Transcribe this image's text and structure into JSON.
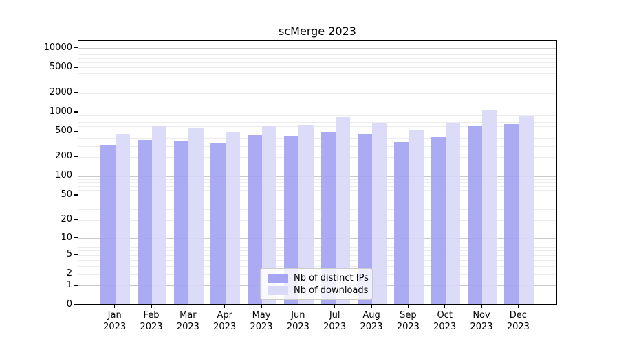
{
  "chart_data": {
    "type": "bar",
    "title": "scMerge 2023",
    "categories": [
      "Jan",
      "Feb",
      "Mar",
      "Apr",
      "May",
      "Jun",
      "Jul",
      "Aug",
      "Sep",
      "Oct",
      "Nov",
      "Dec"
    ],
    "category_year": "2023",
    "series": [
      {
        "name": "Nb of distinct IPs",
        "color": "#a5a5f3",
        "values": [
          300,
          355,
          350,
          315,
          420,
          410,
          485,
          450,
          335,
          405,
          600,
          630
        ]
      },
      {
        "name": "Nb of downloads",
        "color": "#d9d9f8",
        "values": [
          450,
          585,
          540,
          480,
          600,
          610,
          820,
          665,
          510,
          640,
          1030,
          845
        ]
      }
    ],
    "yscale": "log1p",
    "yticks": [
      0,
      1,
      2,
      5,
      10,
      20,
      50,
      100,
      200,
      500,
      1000,
      2000,
      5000,
      10000
    ],
    "ylim": [
      0,
      12700
    ],
    "xlabel": "",
    "ylabel": "",
    "grid": "horizontal major+minor",
    "legend_position": "lower center",
    "colors": {
      "background": "#ffffff",
      "axis": "#000000",
      "grid_major": "#c9c9c9",
      "grid_minor": "#ebebeb",
      "legend_border": "#cccccc",
      "text": "#000000"
    }
  }
}
